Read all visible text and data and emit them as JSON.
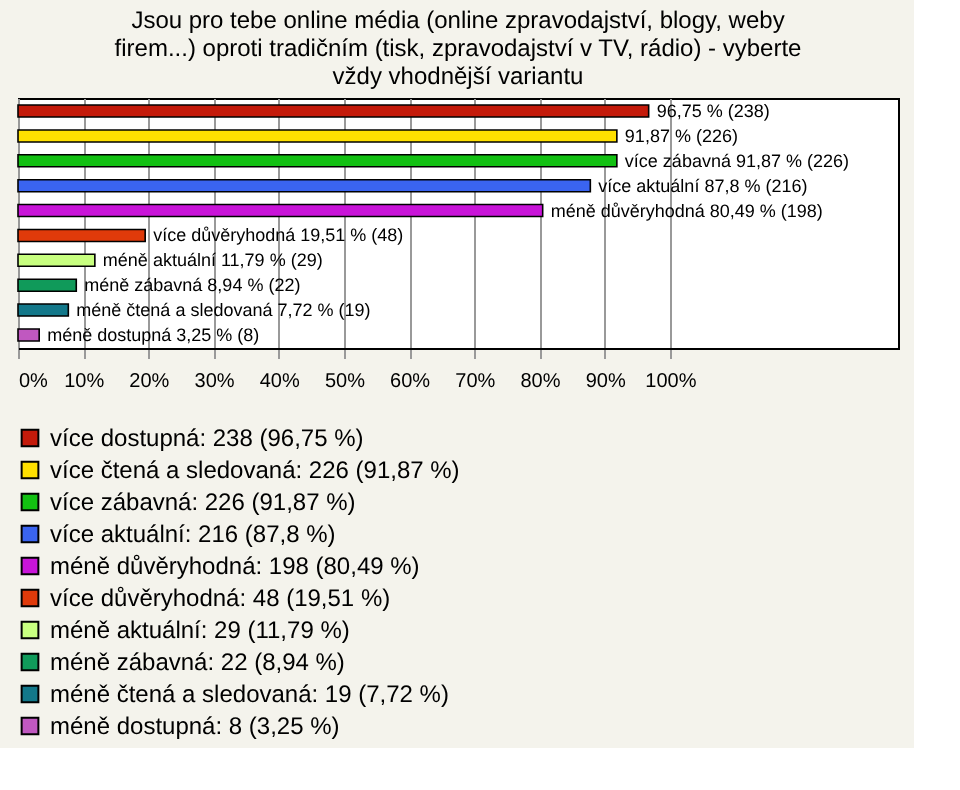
{
  "chart_data": {
    "type": "bar",
    "orientation": "horizontal",
    "title": "Jsou pro tebe online média (online zpravodajství, blogy, weby firem...) oproti tradičním (tisk, zpravodajství v TV, rádio) - vyberte vždy vhodnější variantu",
    "categories": [
      null,
      null,
      null,
      null,
      null,
      null,
      null,
      null,
      null,
      null
    ],
    "series": [
      {
        "name": "více dostupná: 238 (96,75 %)",
        "color": "#c41a0a",
        "values": [
          96.75,
          null,
          null,
          null,
          null,
          null,
          null,
          null,
          null,
          null
        ],
        "value_labels": [
          "96,75 % (238)",
          null,
          null,
          null,
          null,
          null,
          null,
          null,
          null,
          null
        ]
      },
      {
        "name": "více čtená a sledovaná: 226 (91,87 %)",
        "color": "#ffe000",
        "values": [
          null,
          91.87,
          null,
          null,
          null,
          null,
          null,
          null,
          null,
          null
        ],
        "value_labels": [
          null,
          "91,87 % (226)",
          null,
          null,
          null,
          null,
          null,
          null,
          null,
          null
        ]
      },
      {
        "name": "více zábavná: 226 (91,87 %)",
        "color": "#12c012",
        "values": [
          null,
          null,
          91.87,
          null,
          null,
          null,
          null,
          null,
          null,
          null
        ],
        "value_labels": [
          null,
          null,
          "více zábavná 91,87 % (226)",
          null,
          null,
          null,
          null,
          null,
          null,
          null
        ]
      },
      {
        "name": "více aktuální: 216 (87,8 %)",
        "color": "#3a64f0",
        "values": [
          null,
          null,
          null,
          87.8,
          null,
          null,
          null,
          null,
          null,
          null
        ],
        "value_labels": [
          null,
          null,
          null,
          "více aktuální 87,8 % (216)",
          null,
          null,
          null,
          null,
          null,
          null
        ]
      },
      {
        "name": "méně důvěryhodná: 198 (80,49 %)",
        "color": "#c814d8",
        "values": [
          null,
          null,
          null,
          null,
          80.49,
          null,
          null,
          null,
          null,
          null
        ],
        "value_labels": [
          null,
          null,
          null,
          null,
          "méně důvěryhodná 80,49 % (198)",
          null,
          null,
          null,
          null,
          null
        ]
      },
      {
        "name": "více důvěryhodná: 48 (19,51 %)",
        "color": "#e03a0a",
        "values": [
          null,
          null,
          null,
          null,
          null,
          19.51,
          null,
          null,
          null,
          null
        ],
        "value_labels": [
          null,
          null,
          null,
          null,
          null,
          "více důvěryhodná 19,51 % (48)",
          null,
          null,
          null,
          null
        ]
      },
      {
        "name": "méně aktuální: 29 (11,79 %)",
        "color": "#c8ff80",
        "values": [
          null,
          null,
          null,
          null,
          null,
          null,
          11.79,
          null,
          null,
          null
        ],
        "value_labels": [
          null,
          null,
          null,
          null,
          null,
          null,
          "méně aktuální 11,79 % (29)",
          null,
          null,
          null
        ]
      },
      {
        "name": "méně zábavná: 22 (8,94 %)",
        "color": "#109a5a",
        "values": [
          null,
          null,
          null,
          null,
          null,
          null,
          null,
          8.94,
          null,
          null
        ],
        "value_labels": [
          null,
          null,
          null,
          null,
          null,
          null,
          null,
          "méně zábavná 8,94 % (22)",
          null,
          null
        ]
      },
      {
        "name": "méně čtená a sledovaná: 19 (7,72 %)",
        "color": "#13788a",
        "values": [
          null,
          null,
          null,
          null,
          null,
          null,
          null,
          null,
          7.72,
          null
        ],
        "value_labels": [
          null,
          null,
          null,
          null,
          null,
          null,
          null,
          null,
          "méně čtená a sledovaná 7,72 % (19)",
          null
        ]
      },
      {
        "name": "méně dostupná: 8 (3,25 %)",
        "color": "#c058c0",
        "values": [
          null,
          null,
          null,
          null,
          null,
          null,
          null,
          null,
          null,
          3.25
        ],
        "value_labels": [
          null,
          null,
          null,
          null,
          null,
          null,
          null,
          null,
          null,
          "méně dostupná 3,25 % (8)"
        ]
      }
    ],
    "xlim": [
      0,
      135
    ],
    "xticks": [
      {
        "value": 0,
        "label": "0%"
      },
      {
        "value": 10,
        "label": "10%"
      },
      {
        "value": 20,
        "label": "20%"
      },
      {
        "value": 30,
        "label": "30%"
      },
      {
        "value": 40,
        "label": "40%"
      },
      {
        "value": 50,
        "label": "50%"
      },
      {
        "value": 60,
        "label": "60%"
      },
      {
        "value": 70,
        "label": "70%"
      },
      {
        "value": 80,
        "label": "80%"
      },
      {
        "value": 90,
        "label": "90%"
      },
      {
        "value": 100,
        "label": "100%"
      }
    ],
    "grid": "x",
    "legend": "bottom",
    "tick_labels": "x"
  }
}
